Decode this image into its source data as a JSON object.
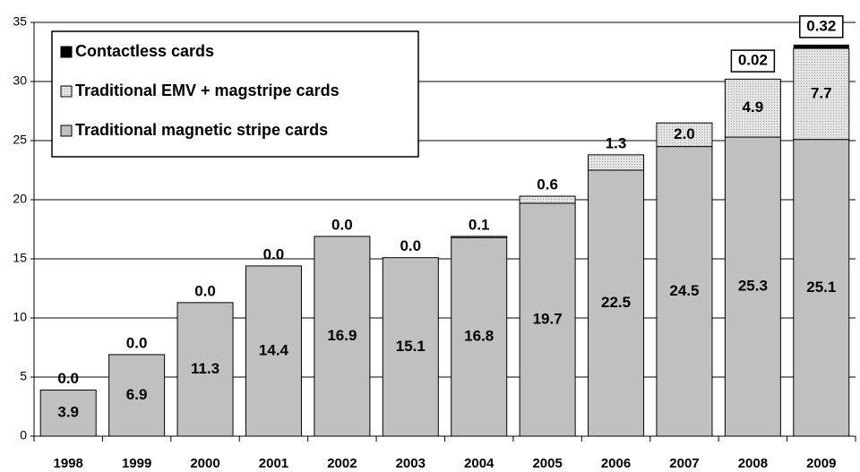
{
  "chart_data": {
    "type": "stacked-bar",
    "categories": [
      "1998",
      "1999",
      "2000",
      "2001",
      "2002",
      "2003",
      "2004",
      "2005",
      "2006",
      "2007",
      "2008",
      "2009"
    ],
    "series": [
      {
        "name": "Traditional magnetic stripe cards",
        "color": "#c0c0c0",
        "values": [
          3.9,
          6.9,
          11.3,
          14.4,
          16.9,
          15.1,
          16.8,
          19.7,
          22.5,
          24.5,
          25.3,
          25.1
        ]
      },
      {
        "name": "Traditional EMV + magstripe cards",
        "color": "#dcdcdc",
        "values": [
          0,
          0,
          0,
          0,
          0,
          0,
          0.1,
          0.6,
          1.3,
          2.0,
          4.9,
          7.7
        ],
        "value_labels": [
          "0.0",
          "0.0",
          "0.0",
          "0.0",
          "0.0",
          "0.0",
          "0.1",
          "0.6",
          "1.3",
          "2.0",
          "4.9",
          "7.7"
        ]
      },
      {
        "name": "Contactless cards",
        "color": "#000000",
        "values": [
          null,
          null,
          null,
          null,
          null,
          null,
          null,
          null,
          null,
          null,
          0.02,
          0.32
        ]
      }
    ],
    "ylim": [
      0,
      35
    ],
    "yticks": [
      0,
      5,
      10,
      15,
      20,
      25,
      30,
      35
    ],
    "grid": true
  }
}
